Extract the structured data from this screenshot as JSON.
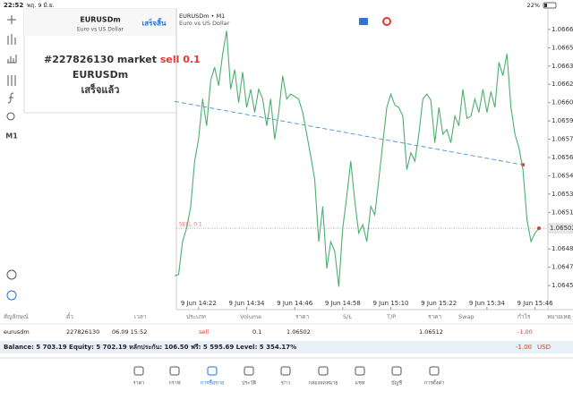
{
  "status_bar": {
    "time": "22:52",
    "date": "พฤ. 9 มิ.ย.",
    "battery": "22%"
  },
  "toolbar": {
    "timeframe": "M1"
  },
  "popup": {
    "symbol": "EURUSDm",
    "description": "Euro vs US Dollar",
    "done_button": "เสร็จสิ้น",
    "message_prefix": "#227826130 market",
    "message_action": "sell 0.1",
    "message_symbol": "EURUSDm",
    "message_status": "เสร็จแล้ว"
  },
  "chart_data": {
    "type": "line",
    "title": "EURUSDm • M1",
    "subtitle": "Euro vs US Dollar",
    "categories": [
      null,
      null,
      null,
      null,
      null,
      null,
      "9 Jun 14:22",
      null,
      null,
      null,
      null,
      null,
      null,
      null,
      null,
      null,
      null,
      null,
      "9 Jun 14:34",
      null,
      null,
      null,
      null,
      null,
      null,
      null,
      null,
      null,
      null,
      null,
      "9 Jun 14:46",
      null,
      null,
      null,
      null,
      null,
      null,
      null,
      null,
      null,
      null,
      null,
      "9 Jun 14:58",
      null,
      null,
      null,
      null,
      null,
      null,
      null,
      null,
      null,
      null,
      null,
      "9 Jun 15:10",
      null,
      null,
      null,
      null,
      null,
      null,
      null,
      null,
      null,
      null,
      null,
      "9 Jun 15:22",
      null,
      null,
      null,
      null,
      null,
      null,
      null,
      null,
      null,
      null,
      null,
      "9 Jun 15:34",
      null,
      null,
      null,
      null,
      null,
      null,
      null,
      null,
      null,
      null,
      null,
      "9 Jun 15:46",
      null
    ],
    "series": [
      {
        "color": "#4caf72",
        "values": [
          1.06463,
          1.06464,
          1.06491,
          1.06502,
          1.06519,
          1.06557,
          1.06575,
          1.06608,
          1.06586,
          1.06623,
          1.06634,
          1.06619,
          1.06645,
          1.06664,
          1.06616,
          1.06632,
          1.06605,
          1.0663,
          1.06601,
          1.06616,
          1.06597,
          1.06616,
          1.06608,
          1.06586,
          1.06608,
          1.06575,
          1.06597,
          1.06627,
          1.06608,
          1.06612,
          1.0661,
          1.06608,
          1.06597,
          1.06579,
          1.06561,
          1.06542,
          1.06491,
          1.0652,
          1.06469,
          1.06491,
          1.06483,
          1.06454,
          1.06502,
          1.06528,
          1.06557,
          1.06524,
          1.06498,
          1.06505,
          1.06491,
          1.0652,
          1.06513,
          1.06542,
          1.06572,
          1.06601,
          1.06612,
          1.06603,
          1.06601,
          1.06594,
          1.0655,
          1.06564,
          1.06557,
          1.06579,
          1.06608,
          1.06612,
          1.06607,
          1.06572,
          1.06601,
          1.06579,
          1.06583,
          1.06572,
          1.06594,
          1.06586,
          1.06616,
          1.06592,
          1.06594,
          1.06608,
          1.06597,
          1.06616,
          1.06597,
          1.06614,
          1.06601,
          1.06638,
          1.06627,
          1.06645,
          1.06601,
          1.06579,
          1.06568,
          1.0655,
          1.06509,
          1.06491,
          1.06498,
          1.06502
        ]
      }
    ],
    "ylim": [
      1.06436,
      1.06673
    ],
    "yticks": [
      1.06665,
      1.0665,
      1.06635,
      {
        "value": 1.0662,
        "label": "1.06620"
      },
      1.06605,
      {
        "value": 1.0659,
        "label": "1.06590"
      },
      1.06575,
      {
        "value": 1.0656,
        "label": "1.06560"
      },
      1.06545,
      {
        "value": 1.0653,
        "label": "1.06530"
      },
      1.06515,
      1.06485,
      {
        "value": 1.0647,
        "label": "1.06470"
      },
      1.06455
    ],
    "current_price": 1.06502,
    "order_line": {
      "label": "SELL 0.1",
      "value": 1.06502
    },
    "trend_line": {
      "start": {
        "category": 0,
        "value": 1.06606
      },
      "end": {
        "category": 87,
        "value": 1.06554
      }
    },
    "grid": false
  },
  "table": {
    "headers": [
      "สัญลักษณ์",
      "ตั๋ว",
      "เวลา",
      "ประเภท",
      "Volume",
      "ราคา",
      "S/L",
      "T/P",
      "ราคา",
      "Swap",
      "กำไร",
      "หมายเหตุ"
    ],
    "rows": [
      [
        "eurusdm",
        "227826130",
        "06.09 15:52",
        "sell",
        "0.1",
        "1.06502",
        null,
        null,
        "1.06512",
        null,
        "-1.00",
        null
      ]
    ]
  },
  "balance": {
    "text": "Balance: 5 703.19 Equity: 5 702.19 หลักประกัน: 106.50 ฟรี: 5 595.69 Level: 5 354.17%",
    "profit": "-1.00",
    "currency": "USD"
  },
  "nav": [
    "ราคา",
    "กราฟ",
    "การซื้อขาย",
    "ประวัติ",
    "ข่าว",
    "กล่องจดหมาย",
    "แชท",
    "บัญชี",
    "การตั้งค่า"
  ]
}
